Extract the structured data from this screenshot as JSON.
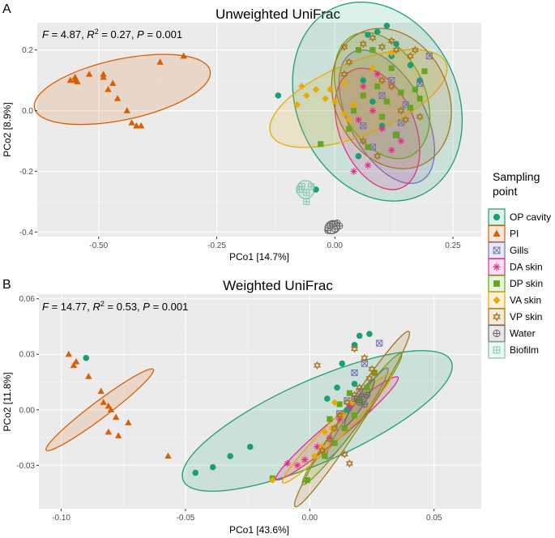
{
  "panel_a": {
    "letter": "A",
    "stat_F": "F",
    "stat_F_val": " = 4.87, ",
    "stat_R": "R",
    "stat_R_sup": "2",
    "stat_R_val": " = 0.27, ",
    "stat_P": "P",
    "stat_P_val": " = 0.001"
  },
  "panel_b": {
    "letter": "B",
    "stat_F": "F",
    "stat_F_val": " = 14.77, ",
    "stat_R": "R",
    "stat_R_sup": "2",
    "stat_R_val": " = 0.53, ",
    "stat_P": "P",
    "stat_P_val": " = 0.001"
  },
  "legend": {
    "title_line1": "Sampling",
    "title_line2": "point",
    "items": [
      {
        "label": "OP cavity",
        "color": "#1b9e77",
        "shape": "circle"
      },
      {
        "label": "PI",
        "color": "#d95f02",
        "shape": "triangle"
      },
      {
        "label": "Gills",
        "color": "#7570b3",
        "shape": "squarex"
      },
      {
        "label": "DA skin",
        "color": "#e7298a",
        "shape": "asterisk"
      },
      {
        "label": "DP skin",
        "color": "#66a61e",
        "shape": "square"
      },
      {
        "label": "VA skin",
        "color": "#e6ab02",
        "shape": "diamond"
      },
      {
        "label": "VP skin",
        "color": "#a6761d",
        "shape": "star"
      },
      {
        "label": "Water",
        "color": "#666666",
        "shape": "circleplus"
      },
      {
        "label": "Biofilm",
        "color": "#80c8ae",
        "shape": "squareplus"
      }
    ]
  },
  "chart_data": [
    {
      "type": "scatter",
      "title": "Unweighted UniFrac",
      "xlabel": "PCo1 [14.7%]",
      "ylabel": "PCo2 [8.9%]",
      "xlim": [
        -0.63,
        0.31
      ],
      "ylim": [
        -0.415,
        0.29
      ],
      "xticks": [
        -0.5,
        -0.25,
        0.0,
        0.25
      ],
      "xtick_labels": [
        "-0.50",
        "-0.25",
        "0.00",
        "0.25"
      ],
      "yticks": [
        -0.4,
        -0.2,
        0.0,
        0.2
      ],
      "ytick_labels": [
        "-0.4",
        "-0.2",
        "0.0",
        "0.2"
      ],
      "ellipses": [
        {
          "group": "PI",
          "cx": -0.45,
          "cy": 0.07,
          "rx": 0.19,
          "ry": 0.1,
          "angle": -12
        },
        {
          "group": "OP cavity",
          "cx": 0.09,
          "cy": 0.03,
          "rx": 0.17,
          "ry": 0.34,
          "angle": -25
        },
        {
          "group": "Gills",
          "cx": 0.11,
          "cy": -0.02,
          "rx": 0.08,
          "ry": 0.24,
          "angle": -28
        },
        {
          "group": "DA skin",
          "cx": 0.09,
          "cy": -0.06,
          "rx": 0.08,
          "ry": 0.21,
          "angle": -22
        },
        {
          "group": "DP skin",
          "cx": 0.1,
          "cy": 0.05,
          "rx": 0.09,
          "ry": 0.22,
          "angle": -25
        },
        {
          "group": "VA skin",
          "cx": 0.05,
          "cy": 0.04,
          "rx": 0.2,
          "ry": 0.12,
          "angle": -22
        },
        {
          "group": "VP skin",
          "cx": 0.12,
          "cy": 0.04,
          "rx": 0.12,
          "ry": 0.24,
          "angle": -25
        },
        {
          "group": "Biofilm",
          "cx": -0.062,
          "cy": -0.26,
          "rx": 0.018,
          "ry": 0.03,
          "angle": 0
        },
        {
          "group": "Water",
          "cx": -0.005,
          "cy": -0.384,
          "rx": 0.016,
          "ry": 0.021,
          "angle": -20
        }
      ],
      "series": [
        {
          "name": "PI",
          "points": [
            [
              -0.55,
              0.11
            ],
            [
              -0.55,
              0.1
            ],
            [
              -0.56,
              0.1
            ],
            [
              -0.545,
              0.095
            ],
            [
              -0.52,
              0.12
            ],
            [
              -0.49,
              0.12
            ],
            [
              -0.49,
              0.11
            ],
            [
              -0.48,
              0.07
            ],
            [
              -0.47,
              0.09
            ],
            [
              -0.46,
              0.04
            ],
            [
              -0.44,
              0.0
            ],
            [
              -0.43,
              -0.04
            ],
            [
              -0.42,
              -0.05
            ],
            [
              -0.41,
              -0.05
            ],
            [
              -0.37,
              0.16
            ],
            [
              -0.32,
              0.18
            ]
          ]
        },
        {
          "name": "OP cavity",
          "points": [
            [
              -0.12,
              0.05
            ],
            [
              -0.04,
              -0.26
            ],
            [
              0.07,
              0.25
            ],
            [
              0.09,
              0.26
            ],
            [
              0.11,
              0.28
            ],
            [
              0.13,
              0.22
            ],
            [
              0.12,
              0.18
            ],
            [
              0.16,
              0.15
            ],
            [
              0.08,
              0.03
            ],
            [
              0.06,
              0.1
            ],
            [
              0.18,
              0.1
            ],
            [
              0.1,
              -0.05
            ],
            [
              0.05,
              -0.15
            ]
          ]
        },
        {
          "name": "Gills",
          "points": [
            [
              0.1,
              0.05
            ],
            [
              0.12,
              0.1
            ],
            [
              0.15,
              0.02
            ],
            [
              0.14,
              -0.04
            ],
            [
              0.18,
              0.09
            ],
            [
              0.2,
              0.18
            ],
            [
              0.08,
              -0.12
            ],
            [
              0.13,
              -0.08
            ],
            [
              0.06,
              -0.05
            ]
          ]
        },
        {
          "name": "DA skin",
          "points": [
            [
              0.05,
              -0.03
            ],
            [
              0.08,
              0.0
            ],
            [
              0.1,
              -0.06
            ],
            [
              0.12,
              -0.13
            ],
            [
              0.07,
              -0.18
            ],
            [
              0.04,
              -0.2
            ],
            [
              0.09,
              0.12
            ],
            [
              0.06,
              0.08
            ],
            [
              0.14,
              -0.1
            ]
          ]
        },
        {
          "name": "DP skin",
          "points": [
            [
              -0.03,
              -0.11
            ],
            [
              0.03,
              -0.06
            ],
            [
              0.06,
              0.05
            ],
            [
              0.09,
              0.08
            ],
            [
              0.11,
              0.03
            ],
            [
              0.12,
              0.14
            ],
            [
              0.14,
              0.06
            ],
            [
              0.16,
              0.01
            ],
            [
              0.18,
              0.04
            ],
            [
              0.19,
              0.13
            ],
            [
              0.05,
              0.2
            ],
            [
              0.08,
              0.2
            ],
            [
              0.1,
              -0.02
            ],
            [
              0.13,
              -0.08
            ],
            [
              0.07,
              -0.12
            ],
            [
              0.04,
              0.0
            ],
            [
              0.17,
              0.07
            ]
          ]
        },
        {
          "name": "VA skin",
          "points": [
            [
              -0.06,
              0.05
            ],
            [
              -0.04,
              0.07
            ],
            [
              -0.01,
              0.07
            ],
            [
              -0.02,
              0.04
            ],
            [
              0.0,
              0.03
            ],
            [
              -0.08,
              0.02
            ],
            [
              0.02,
              -0.01
            ],
            [
              0.03,
              -0.03
            ],
            [
              0.04,
              0.02
            ],
            [
              0.12,
              0.19
            ],
            [
              0.08,
              0.14
            ],
            [
              0.02,
              0.09
            ],
            [
              -0.07,
              0.08
            ]
          ]
        },
        {
          "name": "VP skin",
          "points": [
            [
              0.02,
              0.21
            ],
            [
              0.06,
              0.22
            ],
            [
              0.08,
              0.24
            ],
            [
              0.1,
              0.21
            ],
            [
              0.13,
              0.2
            ],
            [
              0.16,
              0.18
            ],
            [
              0.17,
              0.2
            ],
            [
              0.03,
              0.16
            ],
            [
              0.1,
              0.1
            ],
            [
              0.12,
              0.08
            ],
            [
              0.14,
              0.0
            ],
            [
              0.15,
              -0.03
            ],
            [
              0.06,
              -0.1
            ],
            [
              0.09,
              -0.15
            ],
            [
              0.12,
              0.23
            ],
            [
              0.02,
              0.12
            ],
            [
              0.18,
              -0.02
            ]
          ]
        },
        {
          "name": "Water",
          "points": [
            [
              -0.01,
              -0.38
            ],
            [
              0.0,
              -0.39
            ],
            [
              -0.005,
              -0.375
            ],
            [
              0.01,
              -0.38
            ],
            [
              -0.015,
              -0.395
            ],
            [
              0.005,
              -0.37
            ]
          ]
        },
        {
          "name": "Biofilm",
          "points": [
            [
              -0.07,
              -0.25
            ],
            [
              -0.05,
              -0.25
            ],
            [
              -0.06,
              -0.3
            ],
            [
              -0.075,
              -0.26
            ],
            [
              -0.06,
              -0.27
            ]
          ]
        }
      ]
    },
    {
      "type": "scatter",
      "title": "Weighted UniFrac",
      "xlabel": "PCo1 [43.6%]",
      "ylabel": "PCo2 [11.8%]",
      "xlim": [
        -0.109,
        0.069
      ],
      "ylim": [
        -0.0535,
        0.0625
      ],
      "xticks": [
        -0.1,
        -0.05,
        0.0,
        0.05
      ],
      "xtick_labels": [
        "-0.10",
        "-0.05",
        "0.00",
        "0.05"
      ],
      "yticks": [
        -0.03,
        0.0,
        0.03,
        0.06
      ],
      "ytick_labels": [
        "-0.03",
        "0.00",
        "0.03",
        "0.06"
      ],
      "ellipses": [
        {
          "group": "PI",
          "cx": -0.0845,
          "cy": 0.0,
          "rx": 0.027,
          "ry": 0.0045,
          "angle": -37
        },
        {
          "group": "OP cavity",
          "cx": 0.003,
          "cy": -0.006,
          "rx": 0.059,
          "ry": 0.022,
          "angle": -24
        },
        {
          "group": "Gills",
          "cx": 0.019,
          "cy": -0.002,
          "rx": 0.022,
          "ry": 0.0038,
          "angle": -56
        },
        {
          "group": "DA skin",
          "cx": 0.011,
          "cy": -0.01,
          "rx": 0.032,
          "ry": 0.005,
          "angle": -40
        },
        {
          "group": "DP skin",
          "cx": 0.017,
          "cy": -0.005,
          "rx": 0.033,
          "ry": 0.0045,
          "angle": -53
        },
        {
          "group": "VA skin",
          "cx": 0.011,
          "cy": -0.01,
          "rx": 0.031,
          "ry": 0.0048,
          "angle": -45
        },
        {
          "group": "VP skin",
          "cx": 0.017,
          "cy": -0.005,
          "rx": 0.042,
          "ry": 0.0055,
          "angle": -57
        },
        {
          "group": "Water",
          "cx": 0.02,
          "cy": 0.004,
          "rx": 0.011,
          "ry": 0.0024,
          "angle": -58
        }
      ],
      "series": [
        {
          "name": "PI",
          "points": [
            [
              -0.097,
              0.03
            ],
            [
              -0.094,
              0.026
            ],
            [
              -0.095,
              0.024
            ],
            [
              -0.089,
              0.018
            ],
            [
              -0.084,
              0.01
            ],
            [
              -0.083,
              0.004
            ],
            [
              -0.081,
              0.002
            ],
            [
              -0.08,
              0.0
            ],
            [
              -0.078,
              -0.004
            ],
            [
              -0.073,
              -0.007
            ],
            [
              -0.081,
              -0.012
            ],
            [
              -0.077,
              -0.014
            ],
            [
              -0.057,
              -0.025
            ]
          ]
        },
        {
          "name": "OP cavity",
          "points": [
            [
              -0.046,
              -0.034
            ],
            [
              -0.039,
              -0.031
            ],
            [
              -0.032,
              -0.025
            ],
            [
              -0.024,
              -0.02
            ],
            [
              -0.09,
              0.028
            ],
            [
              0.02,
              0.04
            ],
            [
              0.024,
              0.041
            ],
            [
              0.018,
              0.035
            ],
            [
              0.013,
              0.025
            ],
            [
              0.011,
              0.012
            ],
            [
              0.007,
              0.006
            ],
            [
              0.018,
              0.014
            ],
            [
              0.015,
              0.0
            ]
          ]
        },
        {
          "name": "Gills",
          "points": [
            [
              0.028,
              0.036
            ],
            [
              0.022,
              0.025
            ],
            [
              0.018,
              0.02
            ],
            [
              0.02,
              0.01
            ],
            [
              0.015,
              0.005
            ],
            [
              0.012,
              -0.002
            ]
          ]
        },
        {
          "name": "DA skin",
          "points": [
            [
              -0.009,
              -0.029
            ],
            [
              -0.005,
              -0.03
            ],
            [
              -0.002,
              -0.027
            ],
            [
              0.003,
              -0.02
            ],
            [
              0.008,
              -0.015
            ],
            [
              0.012,
              -0.005
            ],
            [
              0.016,
              0.002
            ]
          ]
        },
        {
          "name": "DP skin",
          "points": [
            [
              -0.015,
              -0.037
            ],
            [
              -0.001,
              -0.038
            ],
            [
              0.006,
              -0.025
            ],
            [
              0.01,
              -0.018
            ],
            [
              0.014,
              -0.01
            ],
            [
              0.018,
              -0.003
            ],
            [
              0.02,
              0.005
            ],
            [
              0.023,
              0.012
            ],
            [
              0.026,
              0.02
            ],
            [
              0.012,
              0.003
            ],
            [
              0.008,
              -0.005
            ],
            [
              0.016,
              0.009
            ]
          ]
        },
        {
          "name": "VA skin",
          "points": [
            [
              -0.015,
              -0.038
            ],
            [
              0.002,
              -0.025
            ],
            [
              0.005,
              -0.02
            ],
            [
              0.009,
              -0.01
            ],
            [
              0.013,
              -0.003
            ],
            [
              0.017,
              0.004
            ],
            [
              0.01,
              0.004
            ],
            [
              0.006,
              -0.012
            ]
          ]
        },
        {
          "name": "VP skin",
          "points": [
            [
              0.003,
              0.024
            ],
            [
              0.018,
              0.033
            ],
            [
              0.022,
              0.028
            ],
            [
              0.025,
              0.022
            ],
            [
              0.026,
              0.02
            ],
            [
              0.024,
              0.017
            ],
            [
              0.02,
              0.012
            ],
            [
              0.018,
              0.008
            ],
            [
              0.015,
              0.004
            ],
            [
              0.012,
              -0.003
            ],
            [
              0.01,
              -0.01
            ],
            [
              0.008,
              -0.016
            ],
            [
              0.014,
              -0.024
            ],
            [
              0.016,
              -0.029
            ],
            [
              0.005,
              -0.022
            ]
          ]
        },
        {
          "name": "Water",
          "points": [
            [
              0.021,
              0.007
            ],
            [
              0.02,
              0.004
            ],
            [
              0.022,
              0.003
            ],
            [
              0.018,
              0.006
            ],
            [
              0.023,
              0.008
            ]
          ]
        }
      ]
    }
  ]
}
